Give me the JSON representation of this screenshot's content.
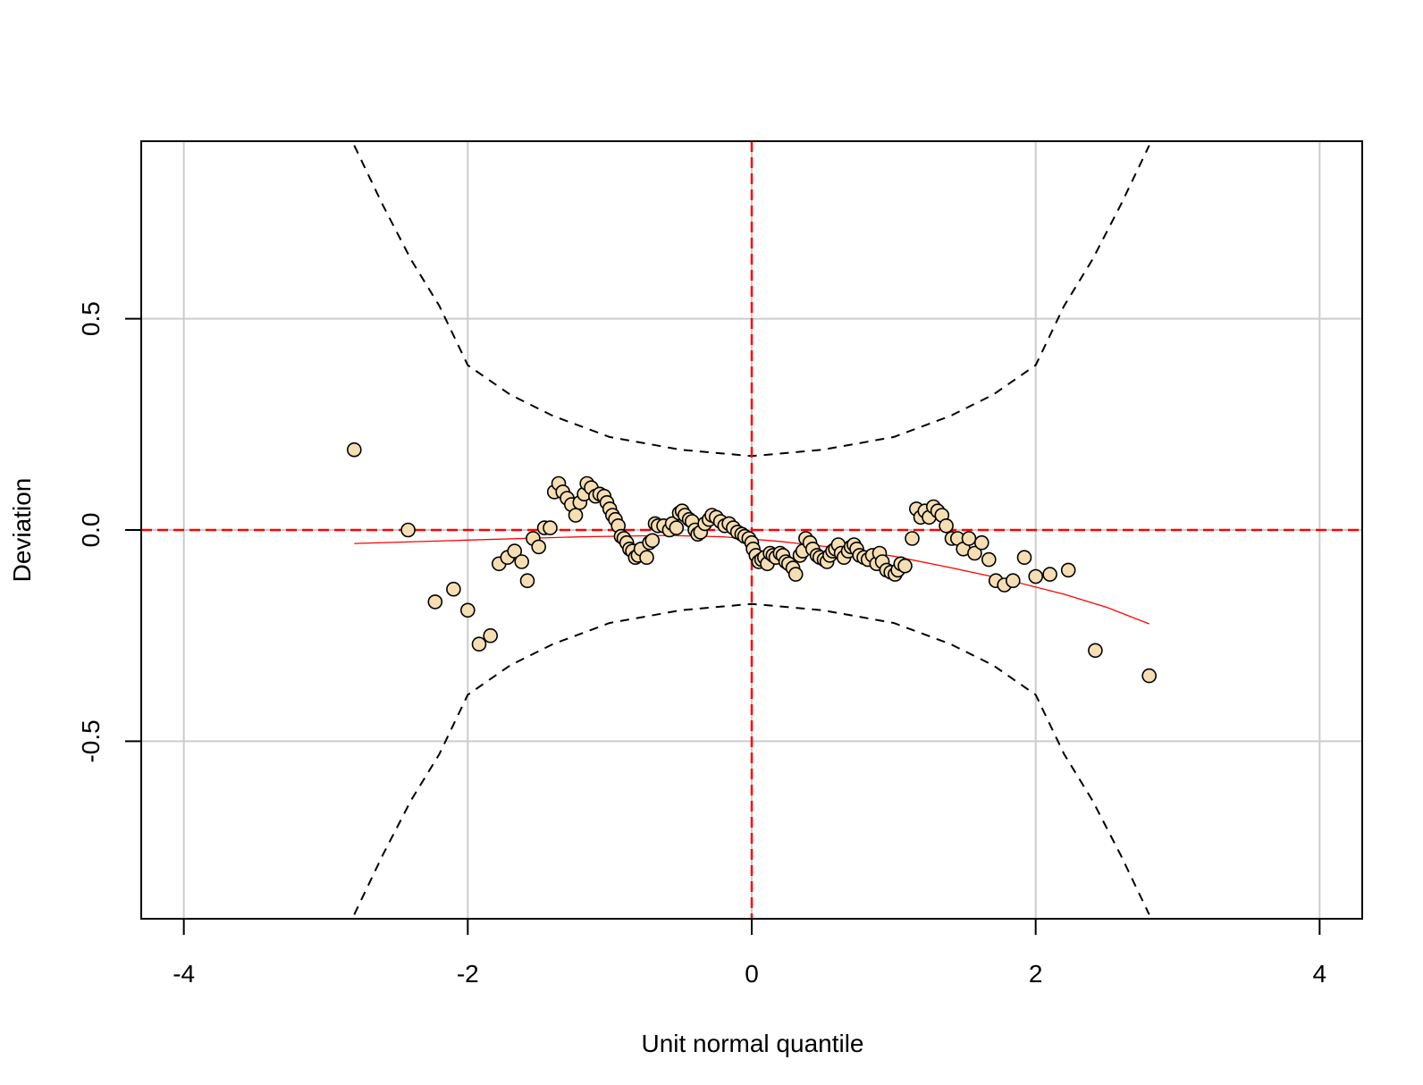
{
  "chart_data": {
    "type": "scatter",
    "title": "",
    "xlabel": "Unit normal quantile",
    "ylabel": "Deviation",
    "xlim": [
      -4.3,
      4.3
    ],
    "ylim": [
      -0.92,
      0.92
    ],
    "xticks": [
      -4,
      -2,
      0,
      2,
      4
    ],
    "xtick_labels": [
      "-4",
      "-2",
      "0",
      "2",
      "4"
    ],
    "yticks": [
      -0.5,
      0.0,
      0.5
    ],
    "ytick_labels": [
      "-0.5",
      "0.0",
      "0.5"
    ],
    "grid": true,
    "reference_lines": {
      "x": 0,
      "y": 0,
      "color": "#ff0000",
      "style": "dashed"
    },
    "point_fill": "#f5deb3",
    "point_stroke": "#000000",
    "grid_color": "#cccccc",
    "trend_color": "#ff0000",
    "points": [
      {
        "x": -2.8,
        "y": 0.19
      },
      {
        "x": -2.42,
        "y": 0.0
      },
      {
        "x": -2.23,
        "y": -0.17
      },
      {
        "x": -2.1,
        "y": -0.14
      },
      {
        "x": -2.0,
        "y": -0.19
      },
      {
        "x": -1.92,
        "y": -0.27
      },
      {
        "x": -1.84,
        "y": -0.25
      },
      {
        "x": -1.78,
        "y": -0.08
      },
      {
        "x": -1.72,
        "y": -0.065
      },
      {
        "x": -1.67,
        "y": -0.05
      },
      {
        "x": -1.62,
        "y": -0.075
      },
      {
        "x": -1.58,
        "y": -0.12
      },
      {
        "x": -1.54,
        "y": -0.02
      },
      {
        "x": -1.5,
        "y": -0.04
      },
      {
        "x": -1.46,
        "y": 0.005
      },
      {
        "x": -1.42,
        "y": 0.005
      },
      {
        "x": -1.39,
        "y": 0.09
      },
      {
        "x": -1.36,
        "y": 0.11
      },
      {
        "x": -1.33,
        "y": 0.09
      },
      {
        "x": -1.3,
        "y": 0.075
      },
      {
        "x": -1.27,
        "y": 0.06
      },
      {
        "x": -1.24,
        "y": 0.035
      },
      {
        "x": -1.21,
        "y": 0.065
      },
      {
        "x": -1.18,
        "y": 0.085
      },
      {
        "x": -1.16,
        "y": 0.11
      },
      {
        "x": -1.13,
        "y": 0.1
      },
      {
        "x": -1.1,
        "y": 0.08
      },
      {
        "x": -1.07,
        "y": 0.085
      },
      {
        "x": -1.04,
        "y": 0.08
      },
      {
        "x": -1.02,
        "y": 0.065
      },
      {
        "x": -1.0,
        "y": 0.05
      },
      {
        "x": -0.98,
        "y": 0.035
      },
      {
        "x": -0.96,
        "y": 0.025
      },
      {
        "x": -0.94,
        "y": 0.01
      },
      {
        "x": -0.92,
        "y": -0.015
      },
      {
        "x": -0.9,
        "y": -0.02
      },
      {
        "x": -0.88,
        "y": -0.03
      },
      {
        "x": -0.86,
        "y": -0.045
      },
      {
        "x": -0.84,
        "y": -0.05
      },
      {
        "x": -0.82,
        "y": -0.065
      },
      {
        "x": -0.8,
        "y": -0.06
      },
      {
        "x": -0.78,
        "y": -0.045
      },
      {
        "x": -0.74,
        "y": -0.065
      },
      {
        "x": -0.72,
        "y": -0.03
      },
      {
        "x": -0.7,
        "y": -0.025
      },
      {
        "x": -0.68,
        "y": 0.015
      },
      {
        "x": -0.66,
        "y": 0.01
      },
      {
        "x": -0.62,
        "y": 0.01
      },
      {
        "x": -0.58,
        "y": 0.0
      },
      {
        "x": -0.56,
        "y": 0.015
      },
      {
        "x": -0.53,
        "y": 0.005
      },
      {
        "x": -0.51,
        "y": 0.04
      },
      {
        "x": -0.49,
        "y": 0.045
      },
      {
        "x": -0.47,
        "y": 0.035
      },
      {
        "x": -0.44,
        "y": 0.025
      },
      {
        "x": -0.42,
        "y": 0.02
      },
      {
        "x": -0.4,
        "y": 0.0
      },
      {
        "x": -0.38,
        "y": -0.01
      },
      {
        "x": -0.36,
        "y": -0.005
      },
      {
        "x": -0.33,
        "y": 0.015
      },
      {
        "x": -0.3,
        "y": 0.025
      },
      {
        "x": -0.28,
        "y": 0.035
      },
      {
        "x": -0.25,
        "y": 0.03
      },
      {
        "x": -0.22,
        "y": 0.02
      },
      {
        "x": -0.19,
        "y": 0.01
      },
      {
        "x": -0.16,
        "y": 0.015
      },
      {
        "x": -0.13,
        "y": 0.005
      },
      {
        "x": -0.1,
        "y": -0.005
      },
      {
        "x": -0.07,
        "y": -0.01
      },
      {
        "x": -0.05,
        "y": -0.015
      },
      {
        "x": -0.02,
        "y": -0.02
      },
      {
        "x": 0.0,
        "y": -0.03
      },
      {
        "x": 0.01,
        "y": -0.045
      },
      {
        "x": 0.03,
        "y": -0.06
      },
      {
        "x": 0.05,
        "y": -0.075
      },
      {
        "x": 0.07,
        "y": -0.07
      },
      {
        "x": 0.09,
        "y": -0.065
      },
      {
        "x": 0.11,
        "y": -0.08
      },
      {
        "x": 0.13,
        "y": -0.055
      },
      {
        "x": 0.15,
        "y": -0.06
      },
      {
        "x": 0.17,
        "y": -0.065
      },
      {
        "x": 0.2,
        "y": -0.055
      },
      {
        "x": 0.22,
        "y": -0.06
      },
      {
        "x": 0.24,
        "y": -0.075
      },
      {
        "x": 0.26,
        "y": -0.08
      },
      {
        "x": 0.29,
        "y": -0.09
      },
      {
        "x": 0.31,
        "y": -0.105
      },
      {
        "x": 0.34,
        "y": -0.06
      },
      {
        "x": 0.36,
        "y": -0.05
      },
      {
        "x": 0.38,
        "y": -0.02
      },
      {
        "x": 0.41,
        "y": -0.03
      },
      {
        "x": 0.43,
        "y": -0.045
      },
      {
        "x": 0.46,
        "y": -0.06
      },
      {
        "x": 0.48,
        "y": -0.065
      },
      {
        "x": 0.51,
        "y": -0.07
      },
      {
        "x": 0.53,
        "y": -0.075
      },
      {
        "x": 0.55,
        "y": -0.06
      },
      {
        "x": 0.57,
        "y": -0.05
      },
      {
        "x": 0.59,
        "y": -0.045
      },
      {
        "x": 0.61,
        "y": -0.035
      },
      {
        "x": 0.63,
        "y": -0.055
      },
      {
        "x": 0.65,
        "y": -0.065
      },
      {
        "x": 0.68,
        "y": -0.05
      },
      {
        "x": 0.7,
        "y": -0.04
      },
      {
        "x": 0.72,
        "y": -0.035
      },
      {
        "x": 0.74,
        "y": -0.045
      },
      {
        "x": 0.76,
        "y": -0.06
      },
      {
        "x": 0.79,
        "y": -0.065
      },
      {
        "x": 0.82,
        "y": -0.07
      },
      {
        "x": 0.85,
        "y": -0.06
      },
      {
        "x": 0.88,
        "y": -0.08
      },
      {
        "x": 0.9,
        "y": -0.055
      },
      {
        "x": 0.92,
        "y": -0.075
      },
      {
        "x": 0.95,
        "y": -0.095
      },
      {
        "x": 0.98,
        "y": -0.1
      },
      {
        "x": 1.01,
        "y": -0.105
      },
      {
        "x": 1.03,
        "y": -0.095
      },
      {
        "x": 1.05,
        "y": -0.08
      },
      {
        "x": 1.08,
        "y": -0.085
      },
      {
        "x": 1.13,
        "y": -0.02
      },
      {
        "x": 1.16,
        "y": 0.05
      },
      {
        "x": 1.19,
        "y": 0.03
      },
      {
        "x": 1.22,
        "y": 0.045
      },
      {
        "x": 1.25,
        "y": 0.03
      },
      {
        "x": 1.28,
        "y": 0.055
      },
      {
        "x": 1.31,
        "y": 0.045
      },
      {
        "x": 1.34,
        "y": 0.035
      },
      {
        "x": 1.37,
        "y": 0.01
      },
      {
        "x": 1.41,
        "y": -0.02
      },
      {
        "x": 1.45,
        "y": -0.02
      },
      {
        "x": 1.49,
        "y": -0.045
      },
      {
        "x": 1.53,
        "y": -0.02
      },
      {
        "x": 1.57,
        "y": -0.055
      },
      {
        "x": 1.62,
        "y": -0.03
      },
      {
        "x": 1.67,
        "y": -0.07
      },
      {
        "x": 1.72,
        "y": -0.12
      },
      {
        "x": 1.78,
        "y": -0.13
      },
      {
        "x": 1.84,
        "y": -0.12
      },
      {
        "x": 1.92,
        "y": -0.065
      },
      {
        "x": 2.0,
        "y": -0.11
      },
      {
        "x": 2.1,
        "y": -0.105
      },
      {
        "x": 2.23,
        "y": -0.095
      },
      {
        "x": 2.42,
        "y": -0.285
      },
      {
        "x": 2.8,
        "y": -0.345
      }
    ],
    "trend_line": [
      {
        "x": -2.8,
        "y": -0.032
      },
      {
        "x": -2.0,
        "y": -0.024
      },
      {
        "x": -1.2,
        "y": -0.016
      },
      {
        "x": -0.6,
        "y": -0.013
      },
      {
        "x": -0.2,
        "y": -0.016
      },
      {
        "x": 0.2,
        "y": -0.027
      },
      {
        "x": 0.6,
        "y": -0.042
      },
      {
        "x": 1.0,
        "y": -0.062
      },
      {
        "x": 1.4,
        "y": -0.089
      },
      {
        "x": 1.8,
        "y": -0.118
      },
      {
        "x": 2.2,
        "y": -0.152
      },
      {
        "x": 2.5,
        "y": -0.183
      },
      {
        "x": 2.8,
        "y": -0.222
      }
    ],
    "envelope": {
      "style": "dashed",
      "color": "#000000",
      "upper": [
        {
          "x": -2.8,
          "y": 0.91
        },
        {
          "x": -2.6,
          "y": 0.77
        },
        {
          "x": -2.4,
          "y": 0.64
        },
        {
          "x": -2.2,
          "y": 0.53
        },
        {
          "x": -2.0,
          "y": 0.39
        },
        {
          "x": -1.7,
          "y": 0.32
        },
        {
          "x": -1.4,
          "y": 0.27
        },
        {
          "x": -1.0,
          "y": 0.22
        },
        {
          "x": -0.5,
          "y": 0.19
        },
        {
          "x": 0.0,
          "y": 0.175
        },
        {
          "x": 0.5,
          "y": 0.19
        },
        {
          "x": 1.0,
          "y": 0.22
        },
        {
          "x": 1.4,
          "y": 0.27
        },
        {
          "x": 1.7,
          "y": 0.32
        },
        {
          "x": 2.0,
          "y": 0.39
        },
        {
          "x": 2.2,
          "y": 0.53
        },
        {
          "x": 2.4,
          "y": 0.64
        },
        {
          "x": 2.6,
          "y": 0.77
        },
        {
          "x": 2.8,
          "y": 0.91
        }
      ],
      "lower": [
        {
          "x": -2.8,
          "y": -0.91
        },
        {
          "x": -2.6,
          "y": -0.77
        },
        {
          "x": -2.4,
          "y": -0.64
        },
        {
          "x": -2.2,
          "y": -0.53
        },
        {
          "x": -2.0,
          "y": -0.39
        },
        {
          "x": -1.7,
          "y": -0.32
        },
        {
          "x": -1.4,
          "y": -0.27
        },
        {
          "x": -1.0,
          "y": -0.22
        },
        {
          "x": -0.5,
          "y": -0.19
        },
        {
          "x": 0.0,
          "y": -0.175
        },
        {
          "x": 0.5,
          "y": -0.19
        },
        {
          "x": 1.0,
          "y": -0.22
        },
        {
          "x": 1.4,
          "y": -0.27
        },
        {
          "x": 1.7,
          "y": -0.32
        },
        {
          "x": 2.0,
          "y": -0.39
        },
        {
          "x": 2.2,
          "y": -0.53
        },
        {
          "x": 2.4,
          "y": -0.64
        },
        {
          "x": 2.6,
          "y": -0.77
        },
        {
          "x": 2.8,
          "y": -0.91
        }
      ]
    }
  }
}
